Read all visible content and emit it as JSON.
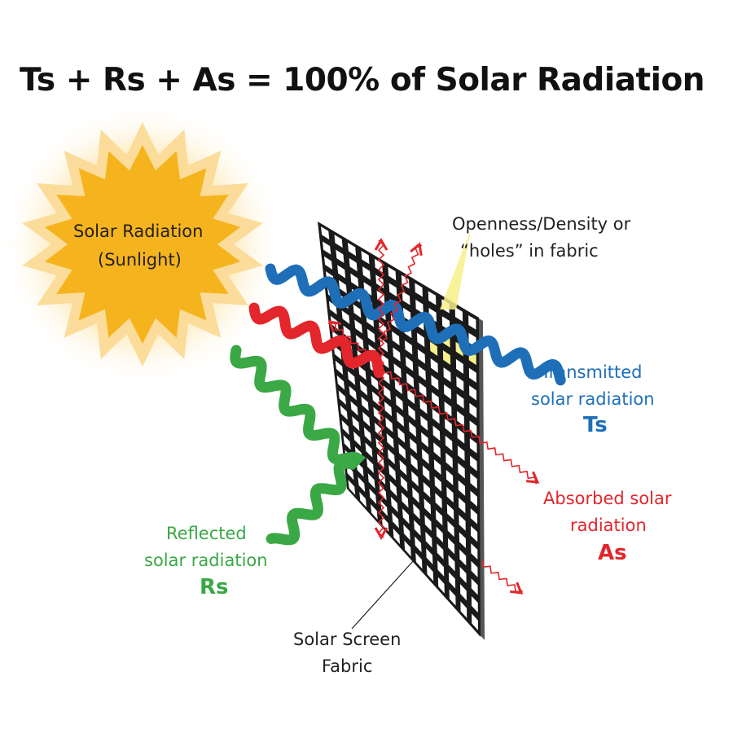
{
  "title": "Ts + Rs + As = 100% of Solar Radiation",
  "sun": {
    "line1": "Solar Radiation",
    "line2": "(Sunlight)",
    "color": "#f5b41e"
  },
  "openness": {
    "line1": "Openness/Density or",
    "line2": "“holes” in fabric"
  },
  "transmitted": {
    "line1": "Transmitted",
    "line2": "solar radiation",
    "symbol": "Ts",
    "color": "#1e6fb8"
  },
  "absorbed": {
    "line1": "Absorbed solar",
    "line2": "radiation",
    "symbol": "As",
    "color": "#e3262b"
  },
  "reflected": {
    "line1": "Reflected",
    "line2": "solar radiation",
    "symbol": "Rs",
    "color": "#3aa845"
  },
  "fabric": {
    "line1": "Solar Screen",
    "line2": "Fabric"
  }
}
